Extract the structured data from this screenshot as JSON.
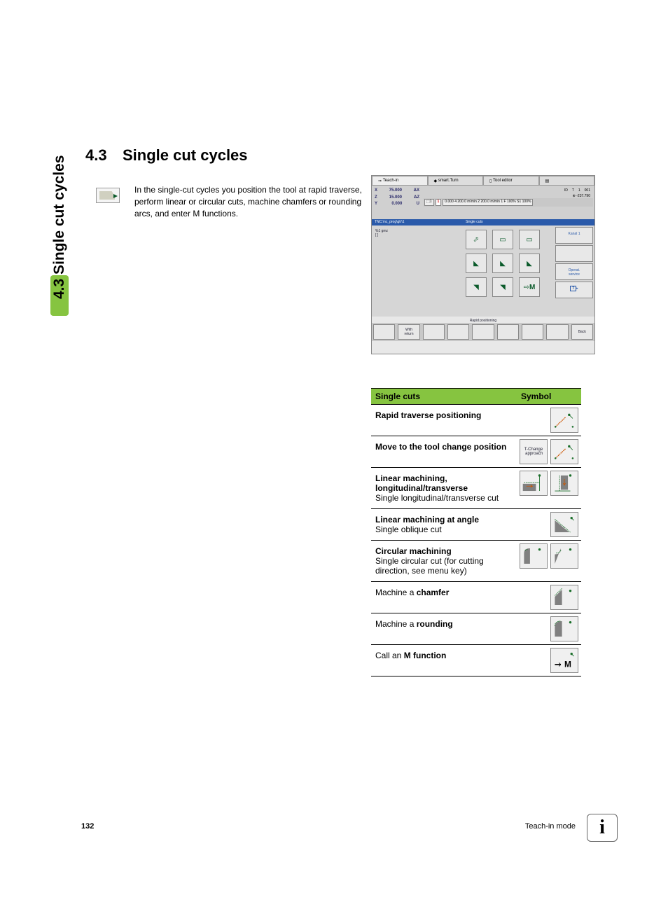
{
  "side_tab": {
    "label": "4.3 Single cut cycles",
    "accent_color": "#86c440"
  },
  "heading": {
    "number": "4.3",
    "title": "Single cut cycles"
  },
  "intro": "In the single-cut cycles you position the tool at rapid traverse, perform linear or circular cuts, machine chamfers or rounding arcs, and enter M functions.",
  "screenshot": {
    "tabs": [
      "Teach-in",
      "smart.Turn",
      "Tool editor",
      ""
    ],
    "active_tab": 0,
    "coords": [
      {
        "axis": "X",
        "val": "75.000",
        "unit": "ΔX"
      },
      {
        "axis": "Z",
        "val": "15.000",
        "unit": "ΔZ"
      },
      {
        "axis": "Y",
        "val": "0.000",
        "unit": "U"
      }
    ],
    "readout_right": [
      {
        "label": "ID",
        "val": ""
      },
      {
        "label": "T",
        "val": "1"
      },
      {
        "label": "",
        "val": "001"
      },
      {
        "label": "",
        "val": "-237.790"
      }
    ],
    "readouts_bottom": "0.000   4   200.0 m/min   2   200.0 m/min   1   F 100% S1 100%",
    "prog_bar": "TNC:\\nc_prog\\gtr\\1",
    "code_lines": [
      "%1 gmz",
      "[ ]"
    ],
    "menu_header": "Single cuts",
    "side_buttons": [
      "Kanal 1",
      "",
      "Operat.\nservice",
      "T"
    ],
    "grid_row_count": 3,
    "grid_col_count": 3,
    "grid_last_label": "M",
    "legend": "Rapid positioning",
    "footer_buttons": [
      "",
      "With\nreturn",
      "",
      "",
      "",
      "",
      "",
      "",
      "Back"
    ]
  },
  "table": {
    "headers": [
      "Single cuts",
      "Symbol"
    ],
    "header_bg": "#86c440",
    "rows": [
      {
        "title": "Rapid traverse positioning",
        "sub": "",
        "symbols": [
          "rapid"
        ]
      },
      {
        "title": "Move to the tool change position",
        "sub": "",
        "symbols": [
          "tchange",
          "rapid"
        ]
      },
      {
        "title": "Linear machining, longitudinal/transverse",
        "sub": "Single longitudinal/transverse cut",
        "symbols": [
          "linear-long",
          "linear-trans"
        ]
      },
      {
        "title": "Linear machining at angle",
        "sub": "Single oblique cut",
        "symbols": [
          "angle"
        ]
      },
      {
        "title": "Circular machining",
        "sub": "Single circular cut (for cutting direction, see menu key)",
        "symbols": [
          "circ-cw",
          "circ-ccw"
        ]
      },
      {
        "title_prefix": "Machine a ",
        "title_bold": "chamfer",
        "sub": "",
        "symbols": [
          "chamfer"
        ]
      },
      {
        "title_prefix": "Machine a ",
        "title_bold": "rounding",
        "sub": "",
        "symbols": [
          "rounding"
        ]
      },
      {
        "title_prefix": "Call an ",
        "title_bold": "M function",
        "sub": "",
        "symbols": [
          "mfunc"
        ]
      }
    ]
  },
  "symbol_svgs": {
    "colors": {
      "stroke": "#1a6e2a",
      "dash": "#1a6e2a",
      "fill": "#808080",
      "arrow": "#cc5500"
    },
    "tchange_text": "T-Change\napproach"
  },
  "footer": {
    "page": "132",
    "mode": "Teach-in mode"
  }
}
